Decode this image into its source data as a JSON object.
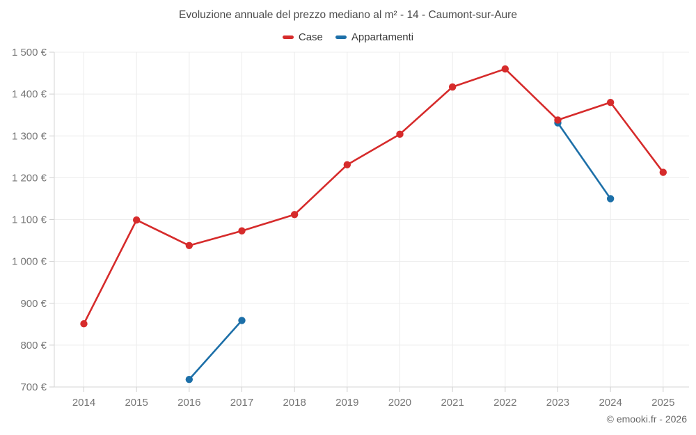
{
  "header": {
    "title": "Evoluzione annuale del prezzo mediano al m² - 14 - Caumont-sur-Aure"
  },
  "footer": {
    "credit": "© emooki.fr - 2026"
  },
  "chart_data": {
    "type": "line",
    "title": "Evoluzione annuale del prezzo mediano al m² - 14 - Caumont-sur-Aure",
    "categories": [
      "2014",
      "2015",
      "2016",
      "2017",
      "2018",
      "2019",
      "2020",
      "2021",
      "2022",
      "2023",
      "2024",
      "2025"
    ],
    "series": [
      {
        "name": "Case",
        "color": "#d62b2b",
        "values": [
          851,
          1099,
          1038,
          1073,
          1112,
          1231,
          1304,
          1417,
          1460,
          1338,
          1380,
          1213
        ]
      },
      {
        "name": "Appartamenti",
        "color": "#1c6fa8",
        "values": [
          null,
          null,
          718,
          859,
          null,
          null,
          null,
          null,
          null,
          1331,
          1150,
          null
        ]
      }
    ],
    "ylim": [
      700,
      1500
    ],
    "ytick_step": 100,
    "ytick_labels": [
      "700 €",
      "800 €",
      "900 €",
      "1 000 €",
      "1 100 €",
      "1 200 €",
      "1 300 €",
      "1 400 €",
      "1 500 €"
    ],
    "xlabel": "",
    "ylabel": "",
    "grid": true,
    "legend_position": "top",
    "marker_radius": 5.2,
    "line_width": 2.6
  },
  "style": {
    "grid_color": "#ececec",
    "axis_color": "#d6d6d6",
    "tick_color": "#cfcfcf",
    "axis_label_color": "#757575",
    "title_color": "#4c4c4c",
    "legend_text_color": "#3a3a3a",
    "footer_color": "#666666",
    "background": "#ffffff"
  }
}
